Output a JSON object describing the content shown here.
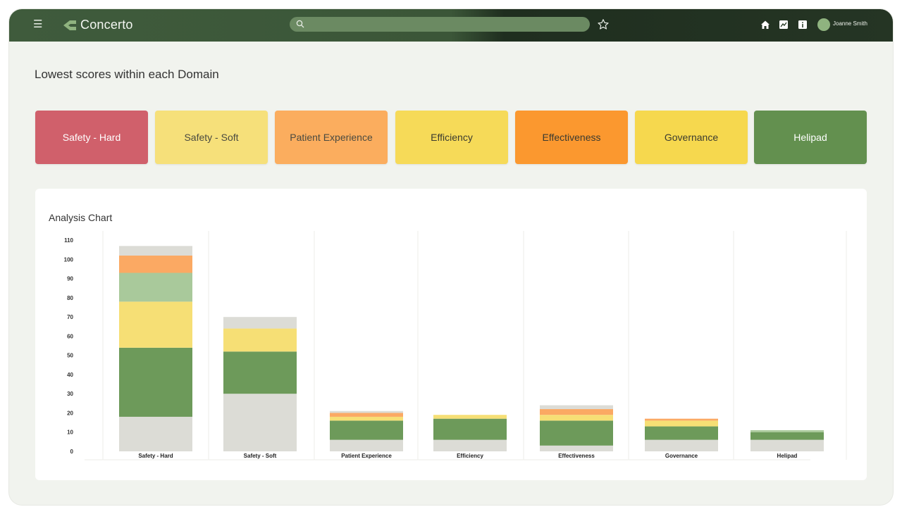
{
  "header": {
    "brand": "Concerto",
    "search_placeholder": "",
    "user_name": "Joanne Smith",
    "icons": [
      "menu-icon",
      "concerto-logo-icon",
      "search-icon",
      "star-icon",
      "home-icon",
      "chart-icon",
      "info-icon",
      "avatar"
    ]
  },
  "page": {
    "heading": "Lowest scores within each Domain"
  },
  "domains": [
    {
      "label": "Safety - Hard",
      "color": "#d0606b",
      "text": "#ffffff"
    },
    {
      "label": "Safety - Soft",
      "color": "#f6e07a",
      "text": "#4a4a40"
    },
    {
      "label": "Patient Experience",
      "color": "#fbad5e",
      "text": "#4a4a40"
    },
    {
      "label": "Efficiency",
      "color": "#f6da58",
      "text": "#3a3a30"
    },
    {
      "label": "Effectiveness",
      "color": "#fb982f",
      "text": "#3a3a30"
    },
    {
      "label": "Governance",
      "color": "#f6d84e",
      "text": "#3a3a30"
    },
    {
      "label": "Helipad",
      "color": "#63904f",
      "text": "#ffffff"
    }
  ],
  "chart": {
    "title": "Analysis Chart"
  },
  "chart_data": {
    "type": "bar",
    "stacked": true,
    "categories": [
      "Safety - Hard",
      "Safety - Soft",
      "Patient Experience",
      "Efficiency",
      "Effectiveness",
      "Governance",
      "Helipad"
    ],
    "yticks": [
      0,
      10,
      20,
      30,
      40,
      50,
      60,
      70,
      80,
      90,
      100,
      110
    ],
    "ylim": [
      0,
      113
    ],
    "grid": false,
    "series": [
      {
        "color": "#dcdcd6",
        "values": [
          18,
          30,
          6,
          6,
          3,
          6,
          6
        ]
      },
      {
        "color": "#6d9a5a",
        "values": [
          36,
          22,
          10,
          11,
          13,
          7,
          4
        ]
      },
      {
        "color": "#f6df75",
        "values": [
          24,
          12,
          2,
          2,
          3,
          3,
          0
        ]
      },
      {
        "color": "#a9c99b",
        "values": [
          15,
          0,
          0,
          0,
          0,
          0,
          1
        ]
      },
      {
        "color": "#fba963",
        "values": [
          9,
          0,
          2,
          0,
          3,
          1,
          0
        ]
      },
      {
        "color": "#dcdcd6",
        "values": [
          5,
          6,
          1,
          0,
          2,
          0,
          0
        ]
      }
    ]
  }
}
